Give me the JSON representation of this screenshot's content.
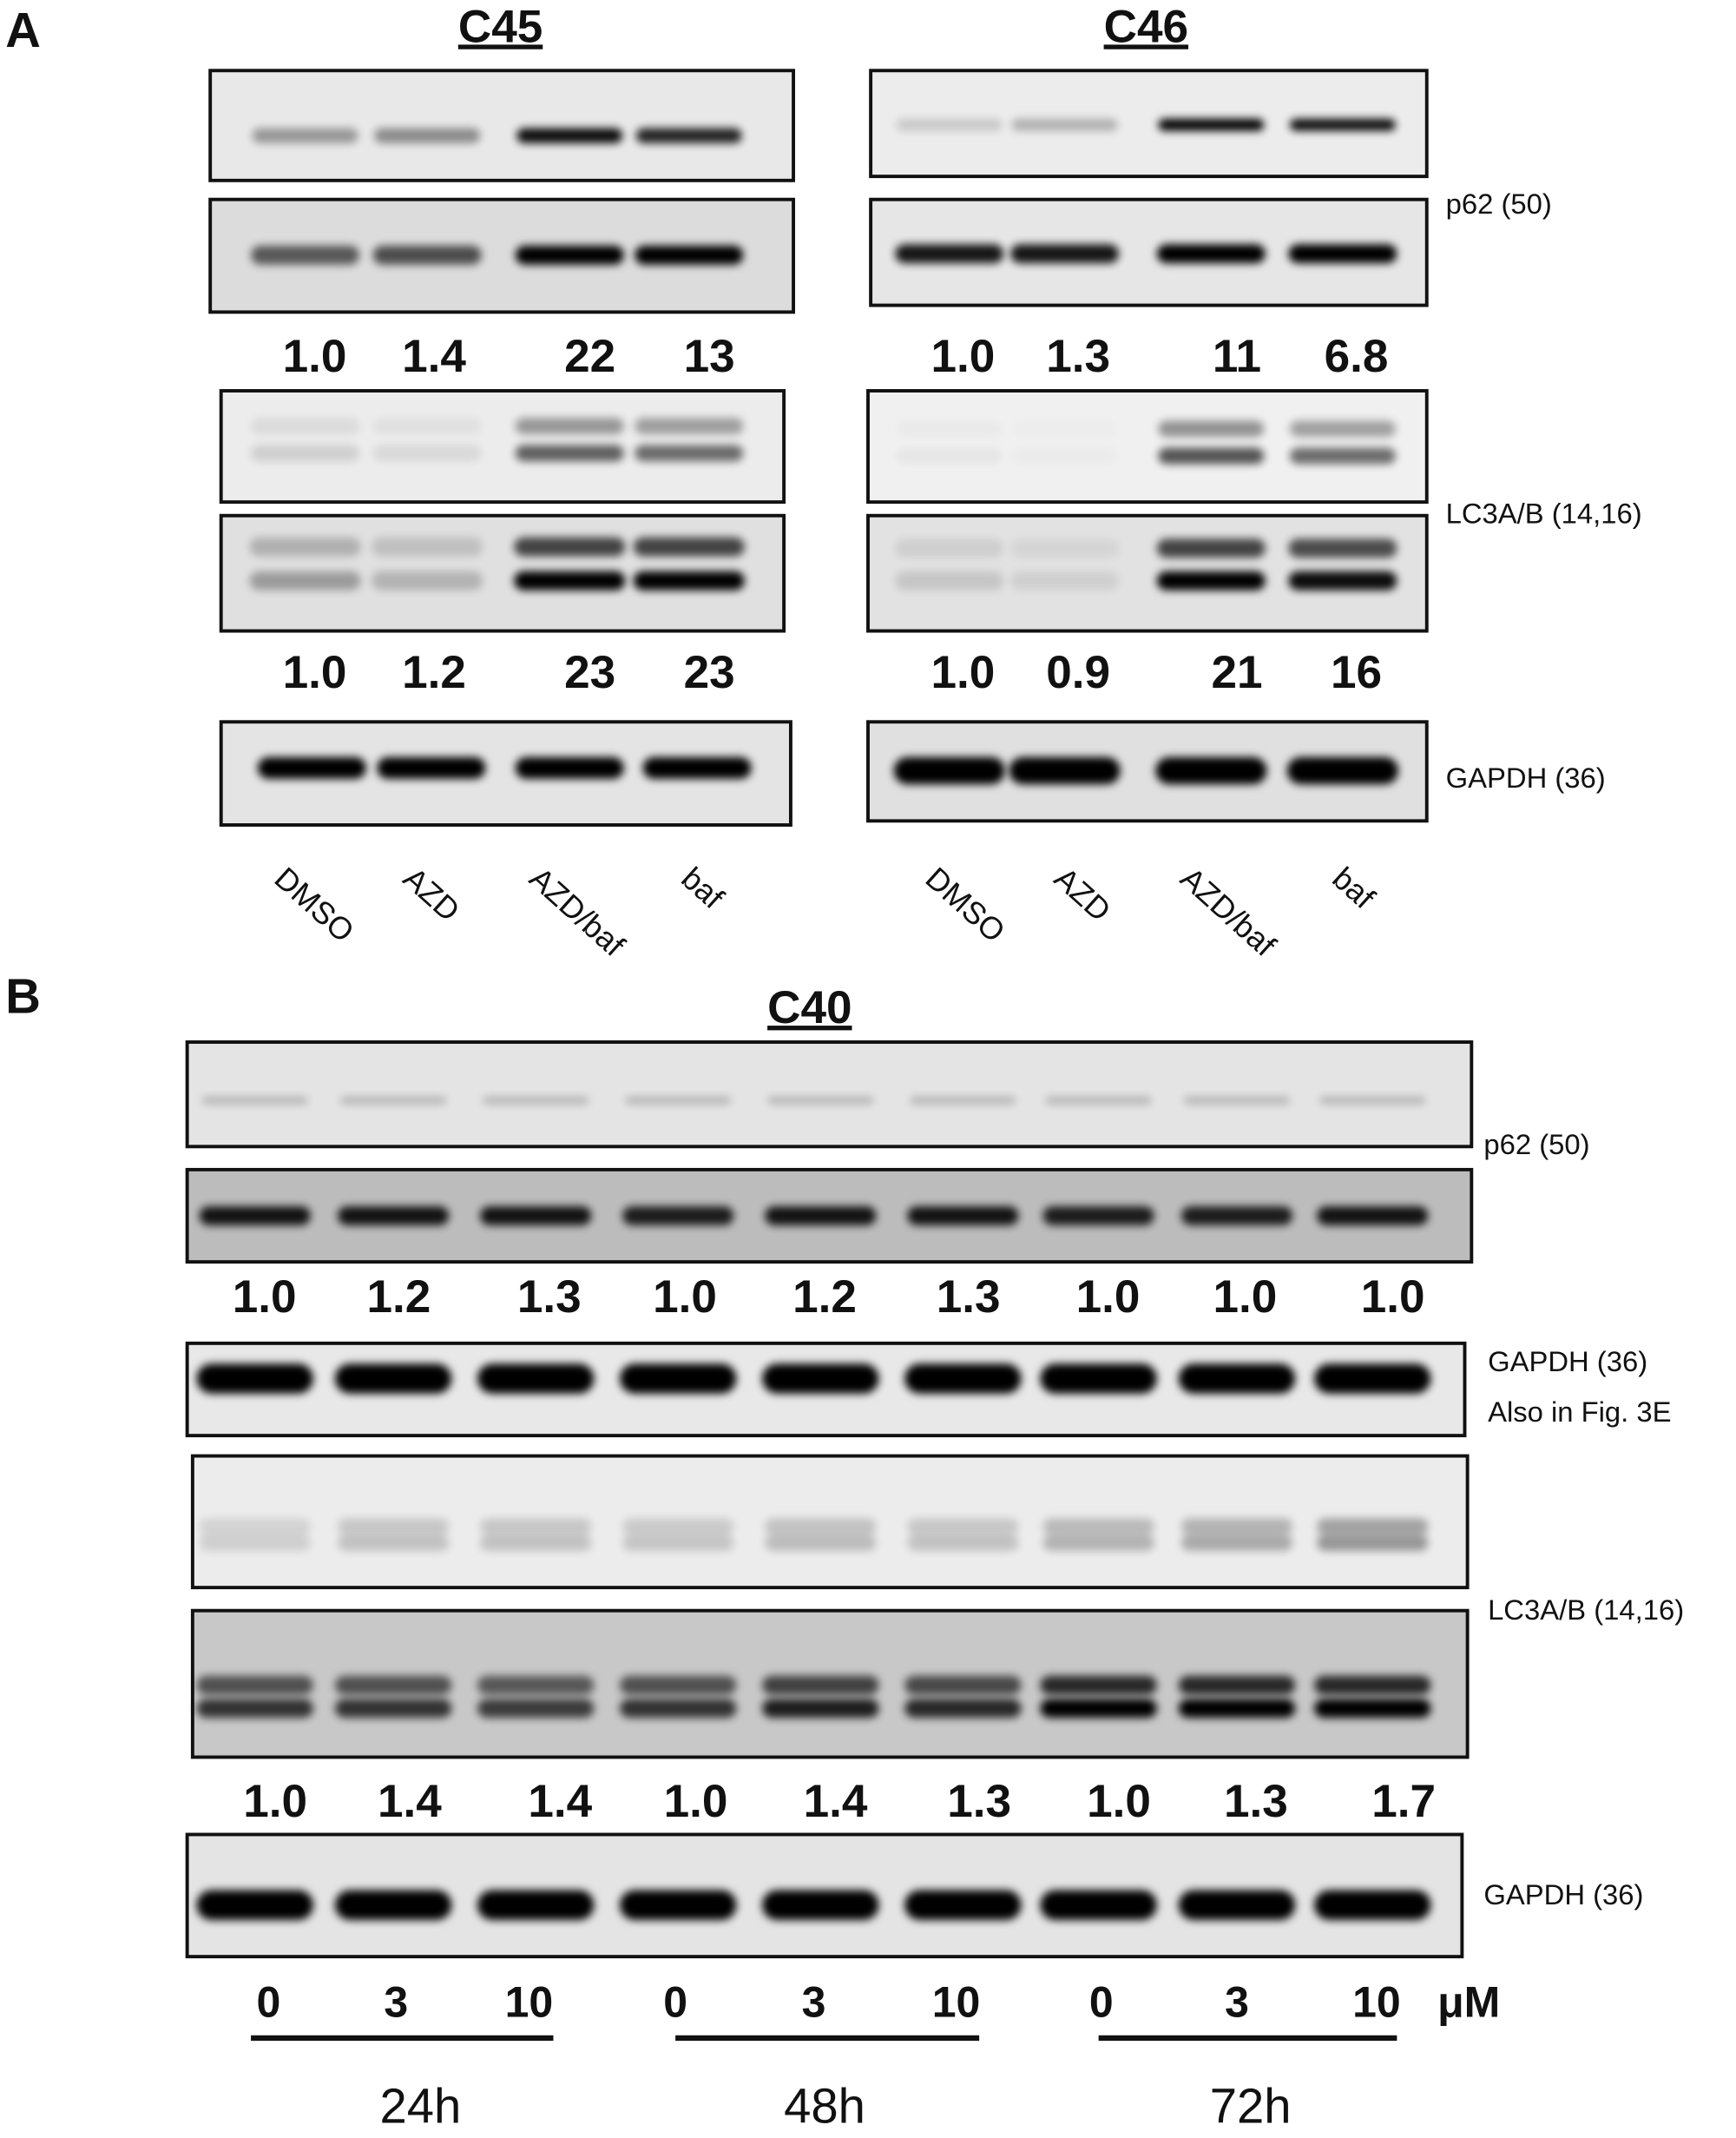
{
  "panel_a": {
    "label": "A",
    "blots": [
      {
        "title": "C45",
        "p62_ratios": [
          "1.0",
          "1.4",
          "22",
          "13"
        ],
        "lc3_ratios": [
          "1.0",
          "1.2",
          "23",
          "23"
        ]
      },
      {
        "title": "C46",
        "p62_ratios": [
          "1.0",
          "1.3",
          "11",
          "6.8"
        ],
        "lc3_ratios": [
          "1.0",
          "0.9",
          "21",
          "16"
        ]
      }
    ],
    "markers": {
      "p62": "p62 (50)",
      "lc3": "LC3A/B (14,16)",
      "gapdh": "GAPDH (36)"
    },
    "lanes": [
      "DMSO",
      "AZD",
      "AZD/baf",
      "baf"
    ]
  },
  "panel_b": {
    "label": "B",
    "title": "C40",
    "p62_ratios": [
      "1.0",
      "1.2",
      "1.3",
      "1.0",
      "1.2",
      "1.3",
      "1.0",
      "1.0",
      "1.0"
    ],
    "lc3_ratios": [
      "1.0",
      "1.4",
      "1.4",
      "1.0",
      "1.4",
      "1.3",
      "1.0",
      "1.3",
      "1.7"
    ],
    "markers": {
      "p62": "p62 (50)",
      "gapdh_1": "GAPDH (36)",
      "gapdh_note": "Also in Fig. 3E",
      "lc3": "LC3A/B (14,16)",
      "gapdh_2": "GAPDH (36)"
    },
    "doses": [
      "0",
      "3",
      "10"
    ],
    "dose_unit": "μM",
    "timepoints": [
      "24h",
      "48h",
      "72h"
    ]
  }
}
